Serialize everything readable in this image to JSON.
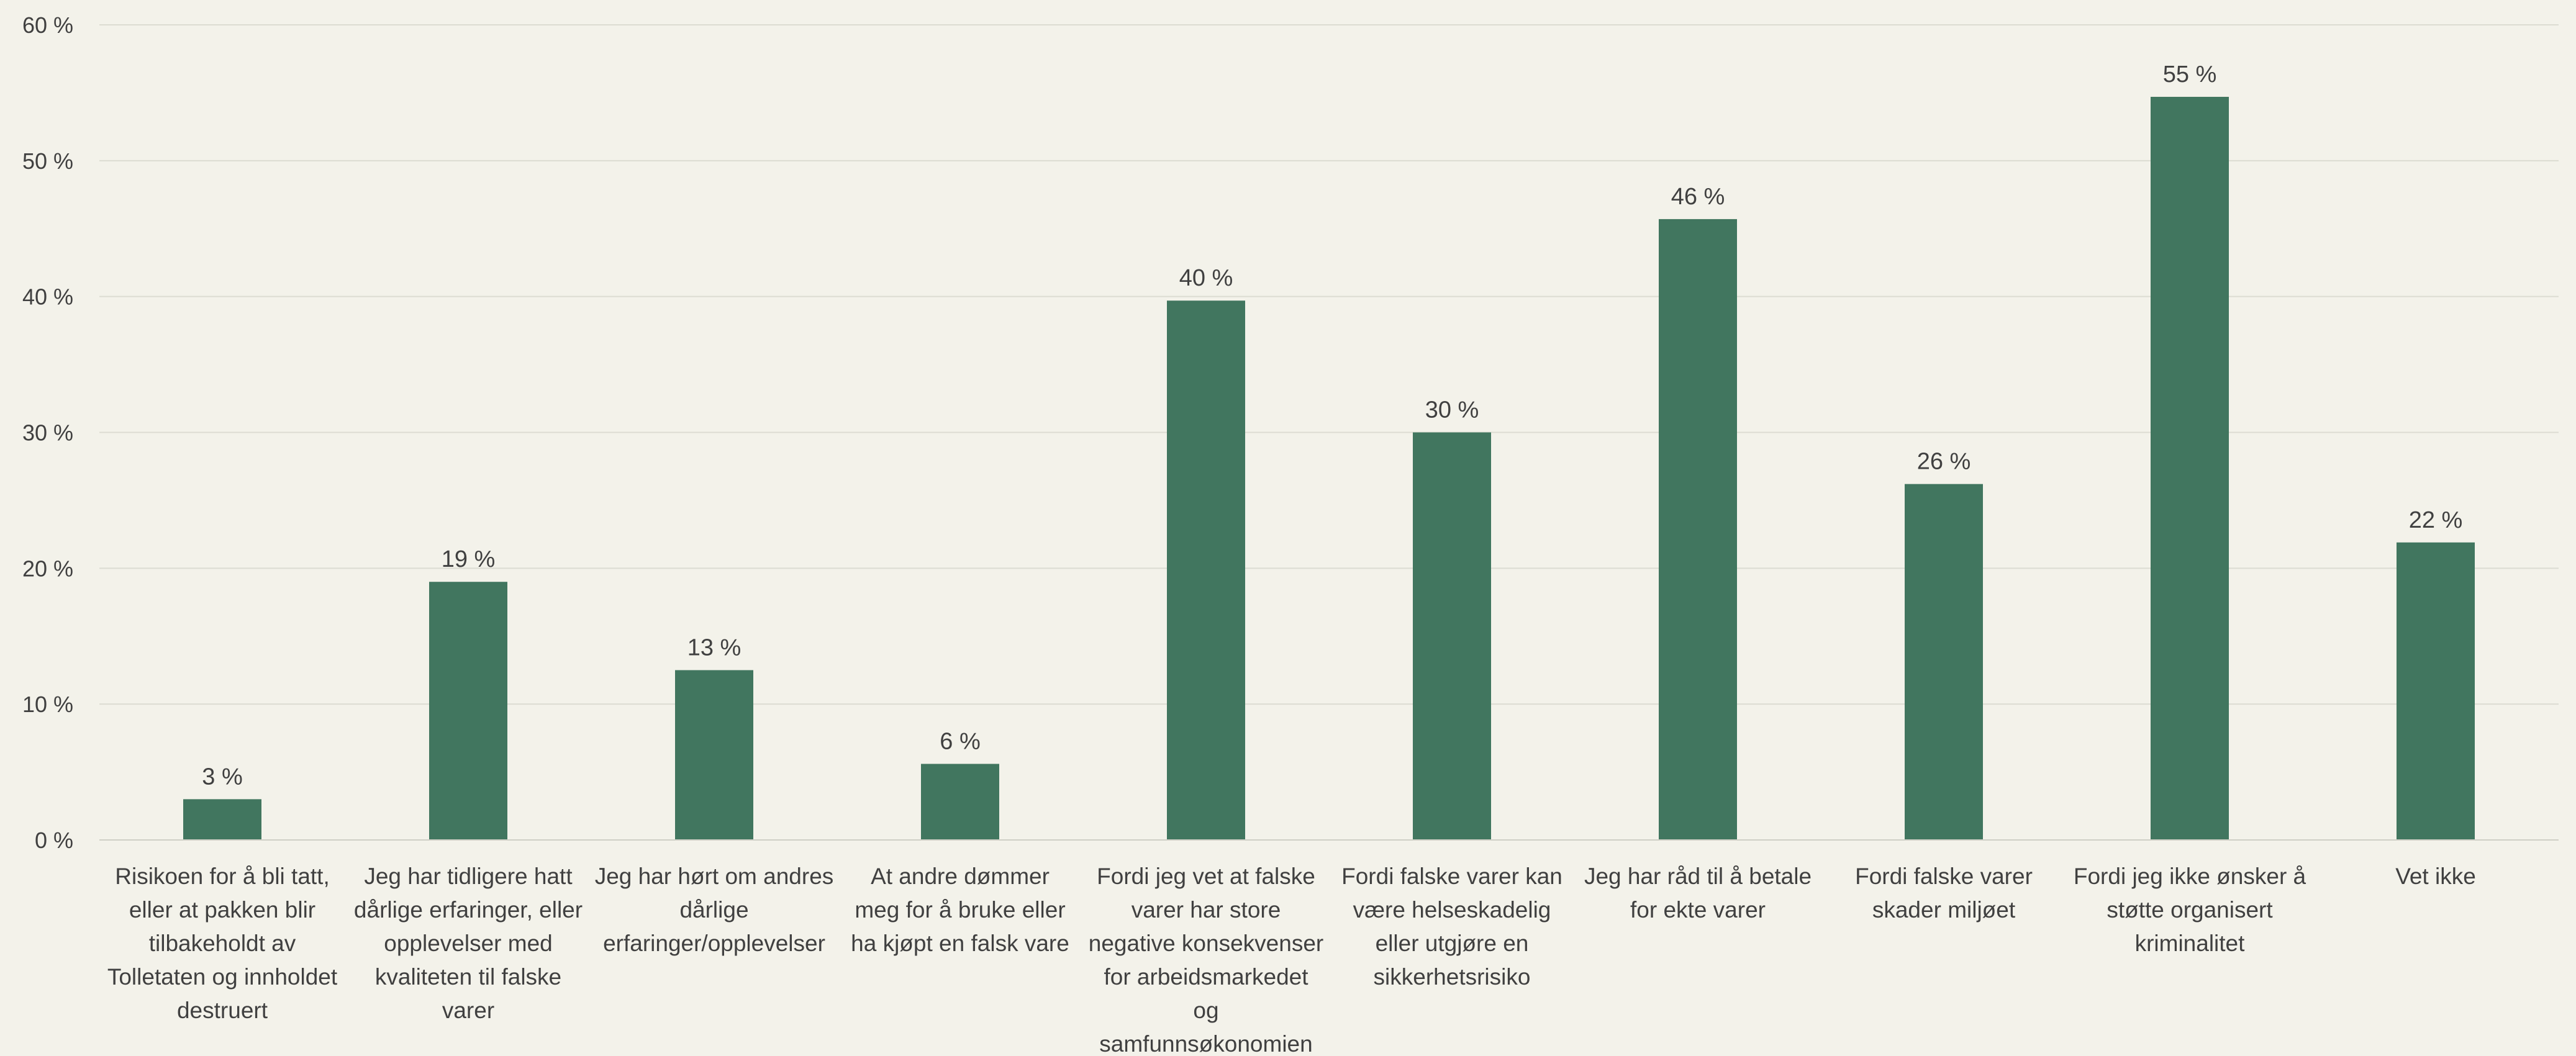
{
  "chart_data": {
    "type": "bar",
    "title": "",
    "xlabel": "",
    "ylabel": "",
    "ylim": [
      0,
      60
    ],
    "yticks": [
      0,
      10,
      20,
      30,
      40,
      50,
      60
    ],
    "ytick_labels": [
      "0 %",
      "10 %",
      "20 %",
      "30 %",
      "40 %",
      "50 %",
      "60 %"
    ],
    "grid": true,
    "legend": "none",
    "bar_color": "#41765f",
    "categories": [
      [
        "Risikoen for å bli tatt,",
        "eller at pakken blir",
        "tilbakeholdt av",
        "Tolletaten og innholdet",
        "destruert"
      ],
      [
        "Jeg har tidligere hatt",
        "dårlige erfaringer, eller",
        "opplevelser med",
        "kvaliteten til falske",
        "varer"
      ],
      [
        "Jeg har hørt om andres",
        "dårlige",
        "erfaringer/opplevelser"
      ],
      [
        "At andre dømmer",
        "meg for å bruke eller",
        "ha kjøpt en falsk vare"
      ],
      [
        "Fordi jeg vet at falske",
        "varer har store",
        "negative konsekvenser",
        "for arbeidsmarkedet",
        "og",
        "samfunnsøkonomien"
      ],
      [
        "Fordi falske varer kan",
        "være helseskadelig",
        "eller utgjøre en",
        "sikkerhetsrisiko"
      ],
      [
        "Jeg har råd til å betale",
        "for ekte varer"
      ],
      [
        "Fordi falske varer",
        "skader miljøet"
      ],
      [
        "Fordi jeg ikke ønsker å",
        "støtte organisert",
        "kriminalitet"
      ],
      [
        "Vet ikke"
      ]
    ],
    "values": [
      3,
      19,
      12.5,
      5.6,
      39.7,
      30,
      45.7,
      26.2,
      54.7,
      21.9
    ],
    "data_labels": [
      "3 %",
      "19 %",
      "13 %",
      "6 %",
      "40 %",
      "30 %",
      "46 %",
      "26 %",
      "55 %",
      "22 %"
    ]
  }
}
